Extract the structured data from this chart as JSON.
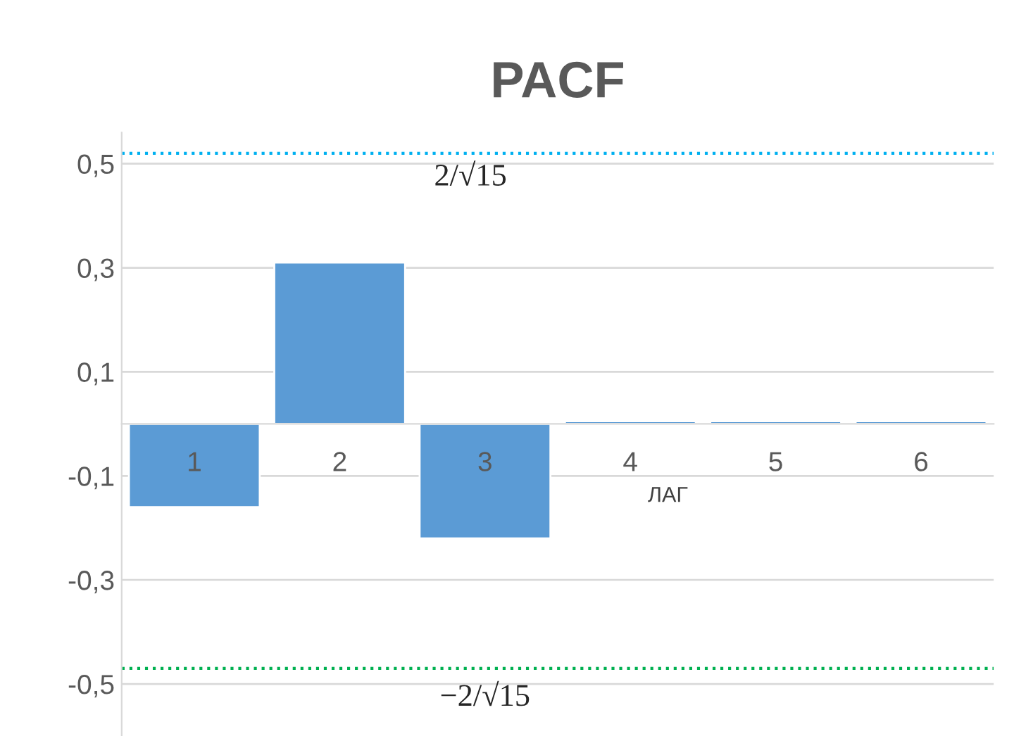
{
  "chart_data": {
    "type": "bar",
    "title": "PACF",
    "categories": [
      "1",
      "2",
      "3",
      "4",
      "5",
      "6"
    ],
    "values": [
      -0.16,
      0.31,
      -0.22,
      0.005,
      0.005,
      0.005
    ],
    "color": "#5b9bd5",
    "ylim": [
      -0.6,
      0.56
    ],
    "yticks": [
      {
        "value": -0.5,
        "label": "-0,5"
      },
      {
        "value": -0.3,
        "label": "-0,3"
      },
      {
        "value": -0.1,
        "label": "-0,1"
      },
      {
        "value": 0.1,
        "label": "0,1"
      },
      {
        "value": 0.3,
        "label": "0,3"
      },
      {
        "value": 0.5,
        "label": "0,5"
      }
    ],
    "grid": "y",
    "ref_lines": [
      {
        "axis": "y",
        "value": 0.52,
        "label": "2/√15",
        "color": "#00b0f0",
        "line_style": "dotted"
      },
      {
        "axis": "y",
        "value": -0.47,
        "label": "−2/√15",
        "color": "#00b050",
        "line_style": "dotted"
      }
    ],
    "annotations": [
      "ЛАГ"
    ]
  }
}
